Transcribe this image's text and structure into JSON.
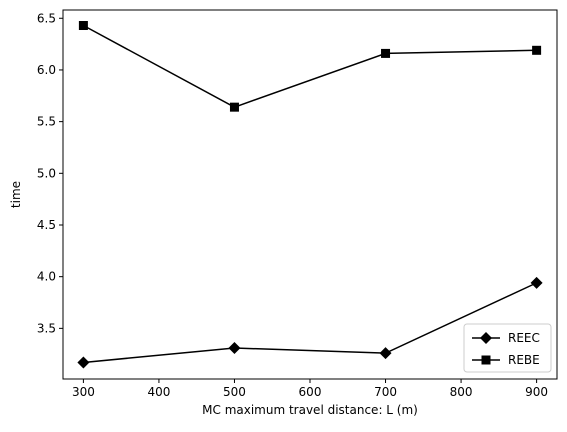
{
  "chart_data": {
    "type": "line",
    "title": "",
    "xlabel": "MC maximum travel distance: L (m)",
    "ylabel": "time",
    "x": [
      300,
      500,
      700,
      900
    ],
    "xlim": [
      273,
      927
    ],
    "ylim": [
      3.01,
      6.58
    ],
    "xticks": [
      300,
      400,
      500,
      600,
      700,
      800,
      900
    ],
    "yticks": [
      3.5,
      4.0,
      4.5,
      5.0,
      5.5,
      6.0,
      6.5
    ],
    "xtick_labels": [
      "300",
      "400",
      "500",
      "600",
      "700",
      "800",
      "900"
    ],
    "ytick_labels": [
      "3.5",
      "4.0",
      "4.5",
      "5.0",
      "5.5",
      "6.0",
      "6.5"
    ],
    "grid": false,
    "legend_position": "bottom-right",
    "series": [
      {
        "name": "REEC",
        "marker": "diamond",
        "color": "#000000",
        "values": [
          3.17,
          3.31,
          3.26,
          3.94
        ]
      },
      {
        "name": "REBE",
        "marker": "square",
        "color": "#000000",
        "values": [
          6.43,
          5.64,
          6.16,
          6.19
        ]
      }
    ]
  }
}
